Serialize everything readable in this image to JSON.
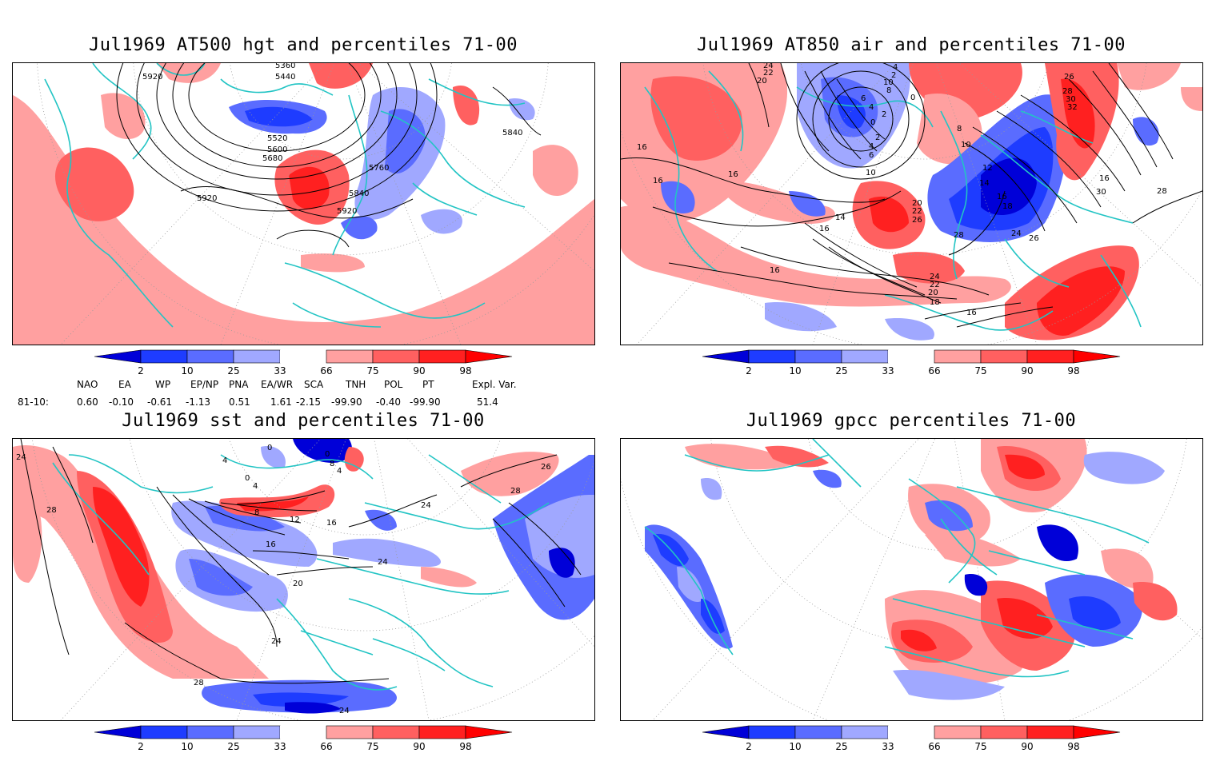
{
  "panels": [
    {
      "title": "Jul1969 AT500 hgt and percentiles 71-00",
      "contour_labels": [
        "5360",
        "5440",
        "5920",
        "5520",
        "5600",
        "5680",
        "5760",
        "5840",
        "5920",
        "5840",
        "5920"
      ]
    },
    {
      "title": "Jul1969 AT850 air and percentiles 71-00",
      "contour_labels": [
        "24",
        "22",
        "20",
        "4",
        "2",
        "10",
        "8",
        "6",
        "4",
        "2",
        "0",
        "0",
        "2",
        "4",
        "6",
        "8",
        "10",
        "26",
        "28",
        "30",
        "32",
        "16",
        "16",
        "10",
        "12",
        "14",
        "16",
        "18",
        "20",
        "22",
        "26",
        "28",
        "24",
        "26",
        "14",
        "16",
        "16",
        "24",
        "22",
        "20",
        "18",
        "16",
        "16",
        "30",
        "28",
        "16"
      ]
    },
    {
      "title": "Jul1969 sst and percentiles 71-00",
      "contour_labels": [
        "24",
        "28",
        "0",
        "4",
        "0",
        "8",
        "4",
        "0",
        "4",
        "8",
        "12",
        "16",
        "16",
        "20",
        "24",
        "28",
        "24",
        "26",
        "28",
        "24",
        "24"
      ]
    },
    {
      "title": "Jul1969 gpcc percentiles 71-00",
      "contour_labels": []
    }
  ],
  "colorbar": {
    "ticks": [
      "2",
      "10",
      "25",
      "33",
      "66",
      "75",
      "90",
      "98"
    ],
    "colors": {
      "below_2": "#0000d8",
      "2_10": "#1e3cff",
      "10_25": "#5a6cff",
      "25_33": "#a0a8ff",
      "66_75": "#ffa0a0",
      "75_90": "#ff6060",
      "90_98": "#ff2020",
      "above_98": "#ff0000"
    }
  },
  "indices": {
    "headers": [
      "NAO",
      "EA",
      "WP",
      "EP/NP",
      "PNA",
      "EA/WR",
      "SCA",
      "TNH",
      "POL",
      "PT",
      "Expl. Var."
    ],
    "row_label": "81-10:",
    "values": [
      "0.60",
      "-0.10",
      "-0.61",
      "-1.13",
      "0.51",
      "1.61",
      "-2.15",
      "-99.90",
      "-0.40",
      "-99.90",
      "51.4"
    ]
  },
  "map_colors": {
    "coast": "#22c4c4",
    "contour": "#000000",
    "grid": "#9a9a9a",
    "background": "#ffffff"
  }
}
